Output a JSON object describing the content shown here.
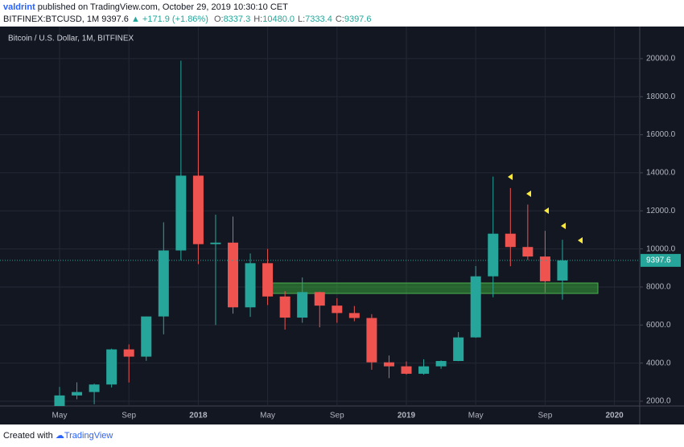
{
  "header": {
    "author": "valdrint",
    "published": "published on TradingView.com, October 29, 2019 10:30:10 CET",
    "symbol": "BITFINEX:BTCUSD, 1M",
    "last": "9397.6",
    "change": "+171.9 (+1.86%)",
    "ohlc": [
      {
        "label": "O:",
        "value": "8337.3"
      },
      {
        "label": "H:",
        "value": "10480.0"
      },
      {
        "label": "L:",
        "value": "7333.4"
      },
      {
        "label": "C:",
        "value": "9397.6"
      }
    ]
  },
  "footer": {
    "created": "Created with",
    "brand": "TradingView"
  },
  "chart_data": {
    "type": "candlestick",
    "title": "Bitcoin / U.S. Dollar, 1M, BITFINEX",
    "categories": [
      "May",
      null,
      null,
      null,
      "Sep",
      null,
      null,
      null,
      "2018",
      null,
      null,
      null,
      "May",
      null,
      null,
      null,
      "Sep",
      null,
      null,
      null,
      "2019",
      null,
      null,
      null,
      "May",
      null,
      null,
      null,
      "Sep",
      null,
      null,
      null,
      "2020"
    ],
    "open": [
      1350,
      2300,
      2480,
      2875,
      4720,
      4340,
      6450,
      9920,
      13850,
      10250,
      10330,
      6930,
      9250,
      7500,
      6390,
      7730,
      7020,
      6630,
      6370,
      4040,
      3830,
      3440,
      3830,
      4110,
      5350,
      8560,
      10800,
      10100,
      9600,
      8337.3,
      null,
      null,
      null
    ],
    "high": [
      2750,
      2990,
      2920,
      4760,
      4980,
      6450,
      11400,
      19890,
      17250,
      11800,
      11700,
      9760,
      10000,
      7780,
      8500,
      7750,
      7410,
      7000,
      6570,
      4400,
      4090,
      4200,
      4140,
      5630,
      9100,
      13800,
      13200,
      12330,
      10950,
      10480.0,
      null,
      null,
      null
    ],
    "low": [
      1350,
      2100,
      1840,
      2720,
      2980,
      4120,
      5510,
      9400,
      9200,
      6000,
      6600,
      6430,
      7050,
      5760,
      6120,
      5880,
      6120,
      6200,
      3650,
      3210,
      3400,
      3390,
      3700,
      4100,
      5330,
      7460,
      9090,
      9420,
      7710,
      7333.4,
      null,
      null,
      null
    ],
    "close": [
      2300,
      2480,
      2875,
      4720,
      4340,
      6450,
      9920,
      13850,
      10250,
      10330,
      6930,
      9250,
      7500,
      6390,
      7730,
      7020,
      6630,
      6370,
      4040,
      3830,
      3440,
      3830,
      4110,
      5350,
      8560,
      10800,
      10100,
      9600,
      8300,
      9397.6,
      null,
      null,
      null
    ],
    "up_color": "#26a69a",
    "down_color": "#ef5350",
    "grid": true,
    "ylim": [
      1830,
      21390
    ],
    "yticks": [
      {
        "value": 2000,
        "label": "2000.0"
      },
      {
        "value": 4000,
        "label": "4000.0"
      },
      {
        "value": 6000,
        "label": "6000.0"
      },
      {
        "value": 8000,
        "label": "8000.0"
      },
      {
        "value": 10000,
        "label": "10000.0"
      },
      {
        "value": 12000,
        "label": "12000.0"
      },
      {
        "value": 14000,
        "label": "14000.0"
      },
      {
        "value": 16000,
        "label": "16000.0"
      },
      {
        "value": 18000,
        "label": "18000.0"
      },
      {
        "value": 20000,
        "label": "20000.0"
      }
    ]
  }
}
